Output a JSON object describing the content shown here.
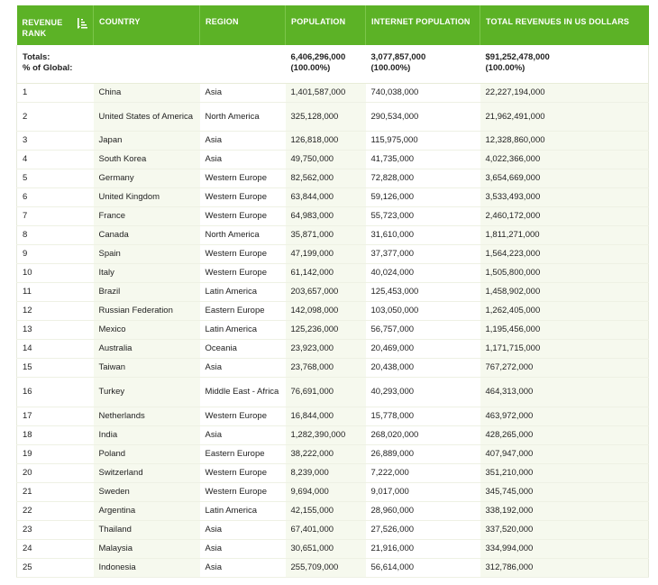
{
  "headers": {
    "rank": "REVENUE RANK",
    "country": "COUNTRY",
    "region": "REGION",
    "population": "POPULATION",
    "internet_population": "INTERNET POPULATION",
    "total_revenues": "TOTAL REVENUES IN US DOLLARS"
  },
  "totals": {
    "label_line1": "Totals:",
    "label_line2": "% of Global:",
    "population": "6,406,296,000",
    "population_pct": "(100.00%)",
    "internet_population": "3,077,857,000",
    "internet_population_pct": "(100.00%)",
    "total_revenues": "$91,252,478,000",
    "total_revenues_pct": "(100.00%)"
  },
  "rows": [
    {
      "rank": "1",
      "country": "China",
      "region": "Asia",
      "population": "1,401,587,000",
      "internet": "740,038,000",
      "revenue": "22,227,194,000"
    },
    {
      "rank": "2",
      "country": "United States of America",
      "region": "North America",
      "population": "325,128,000",
      "internet": "290,534,000",
      "revenue": "21,962,491,000"
    },
    {
      "rank": "3",
      "country": "Japan",
      "region": "Asia",
      "population": "126,818,000",
      "internet": "115,975,000",
      "revenue": "12,328,860,000"
    },
    {
      "rank": "4",
      "country": "South Korea",
      "region": "Asia",
      "population": "49,750,000",
      "internet": "41,735,000",
      "revenue": "4,022,366,000"
    },
    {
      "rank": "5",
      "country": "Germany",
      "region": "Western Europe",
      "population": "82,562,000",
      "internet": "72,828,000",
      "revenue": "3,654,669,000"
    },
    {
      "rank": "6",
      "country": "United Kingdom",
      "region": "Western Europe",
      "population": "63,844,000",
      "internet": "59,126,000",
      "revenue": "3,533,493,000"
    },
    {
      "rank": "7",
      "country": "France",
      "region": "Western Europe",
      "population": "64,983,000",
      "internet": "55,723,000",
      "revenue": "2,460,172,000"
    },
    {
      "rank": "8",
      "country": "Canada",
      "region": "North America",
      "population": "35,871,000",
      "internet": "31,610,000",
      "revenue": "1,811,271,000"
    },
    {
      "rank": "9",
      "country": "Spain",
      "region": "Western Europe",
      "population": "47,199,000",
      "internet": "37,377,000",
      "revenue": "1,564,223,000"
    },
    {
      "rank": "10",
      "country": "Italy",
      "region": "Western Europe",
      "population": "61,142,000",
      "internet": "40,024,000",
      "revenue": "1,505,800,000"
    },
    {
      "rank": "11",
      "country": "Brazil",
      "region": "Latin America",
      "population": "203,657,000",
      "internet": "125,453,000",
      "revenue": "1,458,902,000"
    },
    {
      "rank": "12",
      "country": "Russian Federation",
      "region": "Eastern Europe",
      "population": "142,098,000",
      "internet": "103,050,000",
      "revenue": "1,262,405,000"
    },
    {
      "rank": "13",
      "country": "Mexico",
      "region": "Latin America",
      "population": "125,236,000",
      "internet": "56,757,000",
      "revenue": "1,195,456,000"
    },
    {
      "rank": "14",
      "country": "Australia",
      "region": "Oceania",
      "population": "23,923,000",
      "internet": "20,469,000",
      "revenue": "1,171,715,000"
    },
    {
      "rank": "15",
      "country": "Taiwan",
      "region": "Asia",
      "population": "23,768,000",
      "internet": "20,438,000",
      "revenue": "767,272,000"
    },
    {
      "rank": "16",
      "country": "Turkey",
      "region": "Middle East - Africa",
      "population": "76,691,000",
      "internet": "40,293,000",
      "revenue": "464,313,000"
    },
    {
      "rank": "17",
      "country": "Netherlands",
      "region": "Western Europe",
      "population": "16,844,000",
      "internet": "15,778,000",
      "revenue": "463,972,000"
    },
    {
      "rank": "18",
      "country": "India",
      "region": "Asia",
      "population": "1,282,390,000",
      "internet": "268,020,000",
      "revenue": "428,265,000"
    },
    {
      "rank": "19",
      "country": "Poland",
      "region": "Eastern Europe",
      "population": "38,222,000",
      "internet": "26,889,000",
      "revenue": "407,947,000"
    },
    {
      "rank": "20",
      "country": "Switzerland",
      "region": "Western Europe",
      "population": "8,239,000",
      "internet": "7,222,000",
      "revenue": "351,210,000"
    },
    {
      "rank": "21",
      "country": "Sweden",
      "region": "Western Europe",
      "population": "9,694,000",
      "internet": "9,017,000",
      "revenue": "345,745,000"
    },
    {
      "rank": "22",
      "country": "Argentina",
      "region": "Latin America",
      "population": "42,155,000",
      "internet": "28,960,000",
      "revenue": "338,192,000"
    },
    {
      "rank": "23",
      "country": "Thailand",
      "region": "Asia",
      "population": "67,401,000",
      "internet": "27,526,000",
      "revenue": "337,520,000"
    },
    {
      "rank": "24",
      "country": "Malaysia",
      "region": "Asia",
      "population": "30,651,000",
      "internet": "21,916,000",
      "revenue": "334,994,000"
    },
    {
      "rank": "25",
      "country": "Indonesia",
      "region": "Asia",
      "population": "255,709,000",
      "internet": "56,614,000",
      "revenue": "312,786,000"
    }
  ]
}
